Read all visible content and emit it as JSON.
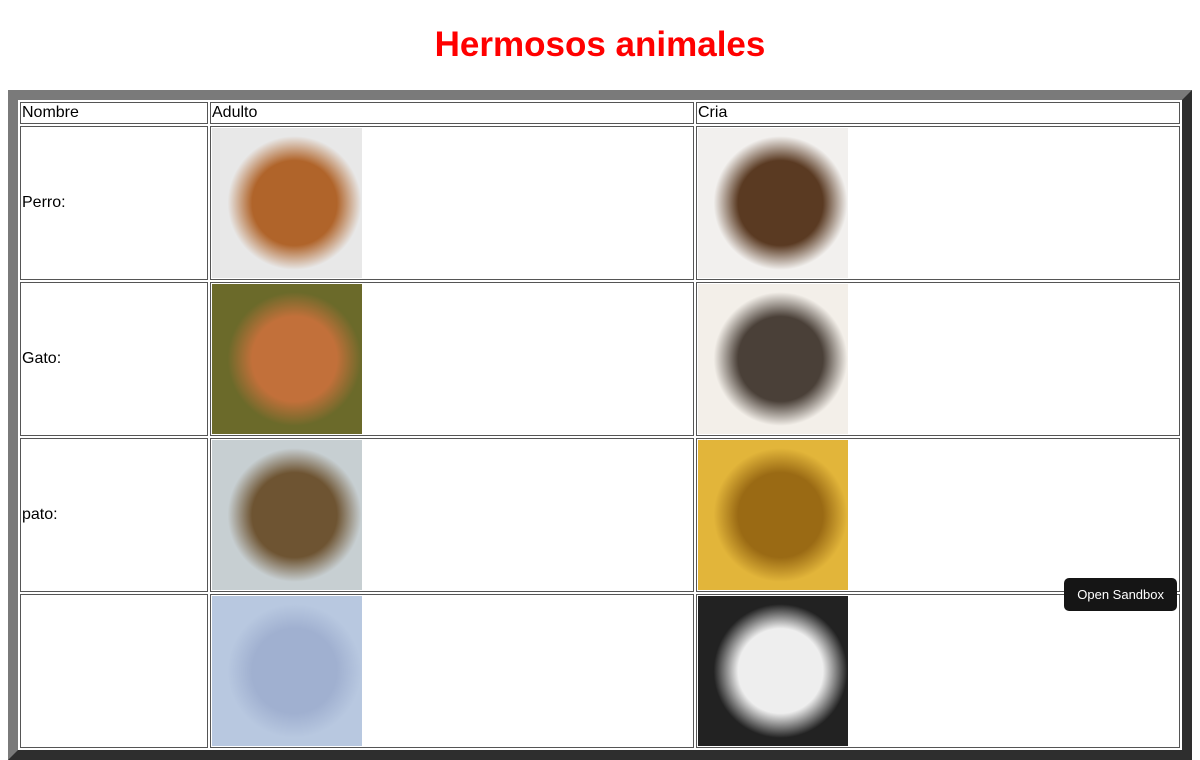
{
  "title": "Hermosos animales",
  "headers": [
    "Nombre",
    "Adulto",
    "Cria"
  ],
  "rows": [
    {
      "name": "Perro:",
      "adult_img": "boxer-dog-photo",
      "young_img": "boxer-puppy-photo",
      "adult_colors": [
        "#e8e8e8",
        "#b0642a"
      ],
      "young_colors": [
        "#f2f0ee",
        "#5a3a22"
      ]
    },
    {
      "name": "Gato:",
      "adult_img": "orange-cat-photo",
      "young_img": "kittens-row-photo",
      "adult_colors": [
        "#6b6a2a",
        "#c2703a"
      ],
      "young_colors": [
        "#f3efe9",
        "#4a4038"
      ]
    },
    {
      "name": "pato:",
      "adult_img": "mallard-duck-photo",
      "young_img": "duckling-photo",
      "adult_colors": [
        "#c7cfd2",
        "#6e5432"
      ],
      "young_colors": [
        "#e2b53a",
        "#9a6a14"
      ]
    },
    {
      "name": "",
      "adult_img": "animal-photo",
      "young_img": "animal-photo",
      "adult_colors": [
        "#b8c8e0",
        "#a0b0d0"
      ],
      "young_colors": [
        "#222",
        "#eee"
      ]
    }
  ],
  "sandbox_button": "Open Sandbox"
}
